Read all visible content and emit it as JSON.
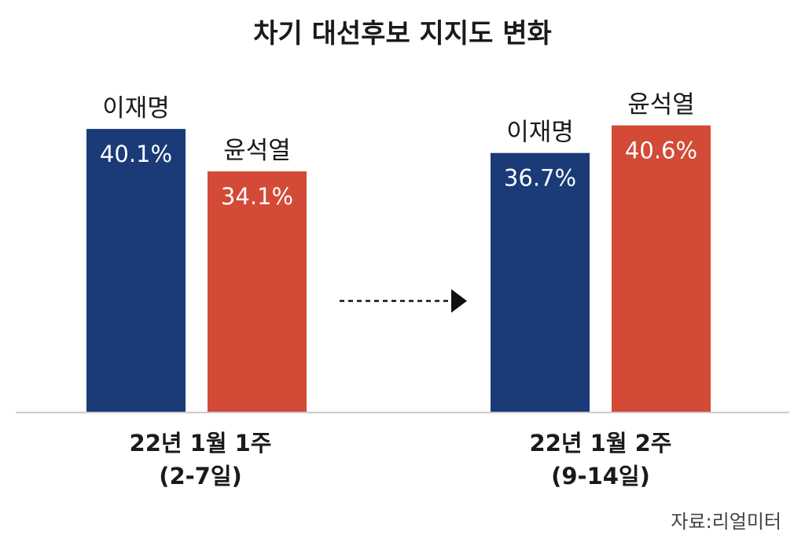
{
  "colors": {
    "lee": "#1a3a78",
    "yoon": "#d34a37",
    "baseline": "#cccccc",
    "arrow": "#111111"
  },
  "chart_data": {
    "type": "bar",
    "title": "차기 대선후보 지지도 변화",
    "categories": [
      {
        "line1": "22년 1월 1주",
        "line2": "(2-7일)"
      },
      {
        "line1": "22년 1월 2주",
        "line2": "(9-14일)"
      }
    ],
    "series": [
      {
        "name": "이재명",
        "values": [
          40.1,
          36.7
        ],
        "labels": [
          "40.1%",
          "36.7%"
        ]
      },
      {
        "name": "윤석열",
        "values": [
          34.1,
          40.6
        ],
        "labels": [
          "34.1%",
          "40.6%"
        ]
      }
    ],
    "source": "자료:리얼미터"
  }
}
